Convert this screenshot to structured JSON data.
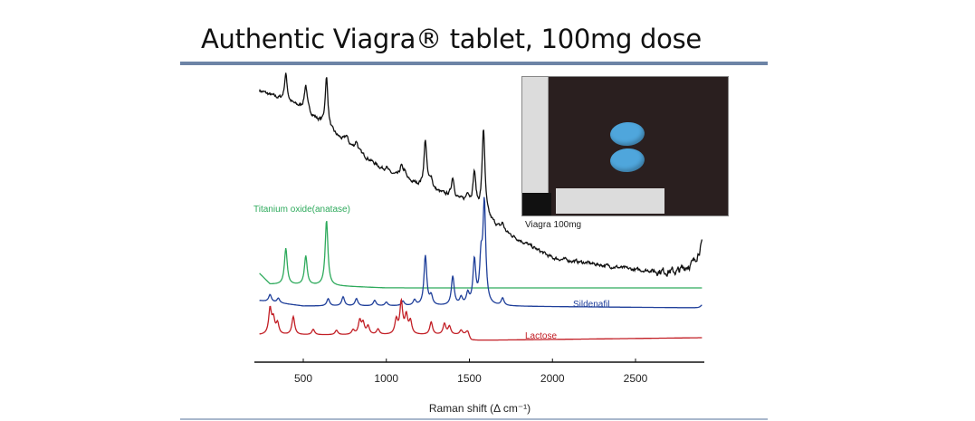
{
  "slide": {
    "title": "Authentic Viagra® tablet, 100mg dose",
    "photo_caption": "Viagra 100mg"
  },
  "chart_data": {
    "type": "line",
    "title": "",
    "xlabel": "Raman shift (Δ cm⁻¹)",
    "ylabel": "",
    "xlim": [
      200,
      2900
    ],
    "xticks": [
      500,
      1000,
      1500,
      2000,
      2500
    ],
    "xtick_labels": [
      "500",
      "1000",
      "1500",
      "2000",
      "2500"
    ],
    "y_units": "arbitrary intensity, stacked",
    "grid": false,
    "series": [
      {
        "name": "",
        "color": "#111111",
        "baseline": [
          [
            236,
            300
          ],
          [
            500,
            280
          ],
          [
            700,
            250
          ],
          [
            1000,
            210
          ],
          [
            1200,
            195
          ],
          [
            1500,
            175
          ],
          [
            1600,
            160
          ],
          [
            1700,
            145
          ],
          [
            2000,
            115
          ],
          [
            2500,
            102
          ],
          [
            2750,
            100
          ],
          [
            2850,
            110
          ],
          [
            2900,
            130
          ]
        ],
        "peaks": [
          [
            395,
            30
          ],
          [
            515,
            28
          ],
          [
            640,
            55
          ],
          [
            760,
            8
          ],
          [
            820,
            10
          ],
          [
            1000,
            6
          ],
          [
            1090,
            12
          ],
          [
            1110,
            8
          ],
          [
            1235,
            52
          ],
          [
            1270,
            12
          ],
          [
            1400,
            22
          ],
          [
            1490,
            10
          ],
          [
            1530,
            38
          ],
          [
            1585,
            95
          ],
          [
            1700,
            8
          ]
        ],
        "noise": true
      },
      {
        "name": "Titanium oxide(anatase)",
        "color": "#2eaa5c",
        "baseline": [
          [
            236,
            98
          ],
          [
            300,
            86
          ],
          [
            700,
            84
          ],
          [
            1000,
            82
          ],
          [
            2900,
            82
          ]
        ],
        "peaks": [
          [
            395,
            40
          ],
          [
            515,
            32
          ],
          [
            640,
            72
          ]
        ]
      },
      {
        "name": "Sildenafil",
        "color": "#1f3f9a",
        "baseline": [
          [
            236,
            68
          ],
          [
            500,
            62
          ],
          [
            1500,
            62
          ],
          [
            2900,
            60
          ]
        ],
        "peaks": [
          [
            300,
            8
          ],
          [
            350,
            5
          ],
          [
            650,
            8
          ],
          [
            740,
            10
          ],
          [
            820,
            8
          ],
          [
            930,
            6
          ],
          [
            1000,
            4
          ],
          [
            1100,
            5
          ],
          [
            1170,
            6
          ],
          [
            1235,
            55
          ],
          [
            1270,
            10
          ],
          [
            1400,
            32
          ],
          [
            1450,
            8
          ],
          [
            1490,
            12
          ],
          [
            1530,
            48
          ],
          [
            1570,
            45
          ],
          [
            1590,
            110
          ],
          [
            1700,
            8
          ],
          [
            2900,
            3
          ]
        ]
      },
      {
        "name": "Lactose",
        "color": "#c21e25",
        "baseline": [
          [
            236,
            30
          ],
          [
            1480,
            30
          ],
          [
            1510,
            24
          ],
          [
            2900,
            27
          ]
        ],
        "peaks": [
          [
            300,
            28
          ],
          [
            320,
            16
          ],
          [
            345,
            12
          ],
          [
            440,
            20
          ],
          [
            560,
            6
          ],
          [
            700,
            5
          ],
          [
            800,
            5
          ],
          [
            840,
            15
          ],
          [
            860,
            12
          ],
          [
            890,
            9
          ],
          [
            950,
            6
          ],
          [
            1060,
            16
          ],
          [
            1090,
            35
          ],
          [
            1120,
            20
          ],
          [
            1145,
            14
          ],
          [
            1270,
            14
          ],
          [
            1350,
            12
          ],
          [
            1380,
            9
          ],
          [
            1450,
            5
          ],
          [
            1490,
            6
          ]
        ]
      }
    ]
  }
}
